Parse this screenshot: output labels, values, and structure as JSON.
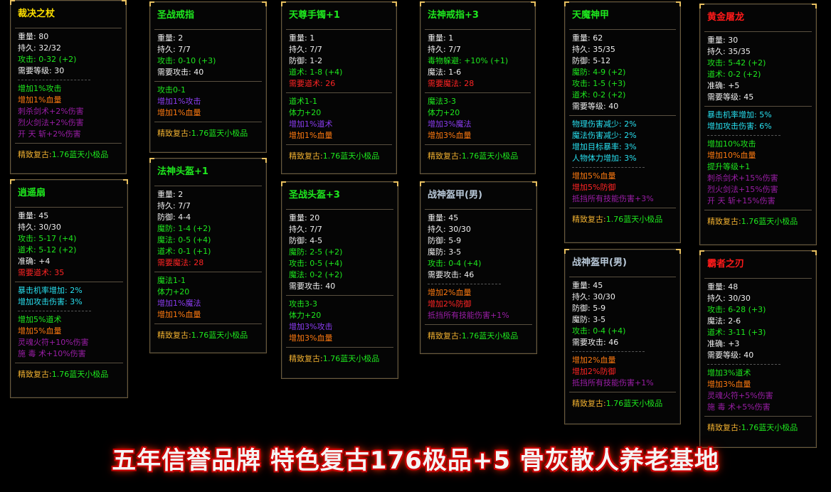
{
  "colors": {
    "w": "#f0f0f0",
    "g": "#1ee81e",
    "r": "#ff2424",
    "o": "#ff7a10",
    "p": "#9a1ea6",
    "v": "#8a3cf0",
    "c": "#28e0f0",
    "y": "#f0b030",
    "gray": "#b8c8d8",
    "border": "#6b5a3a"
  },
  "footer": {
    "label": "精致复古:",
    "value": "1.76蓝天小极品"
  },
  "banner": "五年信誉品牌 特色复古176极品+5 骨灰散人养老基地",
  "cards": [
    {
      "title": "裁决之杖",
      "tc": "#ffe000",
      "sections": [
        {
          "sep": "solid",
          "lines": [
            [
              "重量: 80",
              "w"
            ],
            [
              "持久: 32/32",
              "w"
            ],
            [
              "攻击: 0-32 (+2)",
              "g"
            ],
            [
              "需要等级: 30",
              "w"
            ]
          ]
        },
        {
          "sep": "dashed",
          "lines": [
            [
              "增加1%攻击",
              "g"
            ],
            [
              "增加1%血量",
              "o"
            ],
            [
              "刺杀剑术+2%伤害",
              "p"
            ],
            [
              "烈火剑法+2%伤害",
              "p"
            ],
            [
              "开 天 斩+2%伤害",
              "p"
            ]
          ]
        }
      ]
    },
    {
      "title": "逍遥扇",
      "tc": "#1ee81e",
      "sections": [
        {
          "sep": "solid",
          "lines": [
            [
              "重量: 45",
              "w"
            ],
            [
              "持久: 30/30",
              "w"
            ],
            [
              "攻击: 5-17 (+4)",
              "g"
            ],
            [
              "道术: 5-12 (+2)",
              "g"
            ],
            [
              "准确: +4",
              "w"
            ],
            [
              "需要道术: 35",
              "r"
            ]
          ]
        },
        {
          "sep": "solid",
          "lines": [
            [
              "暴击机率增加: 2%",
              "c"
            ],
            [
              "增加攻击伤害: 3%",
              "c"
            ]
          ]
        },
        {
          "sep": "dashed",
          "lines": [
            [
              "增加5%道术",
              "g"
            ],
            [
              "增加5%血量",
              "o"
            ],
            [
              "灵魂火符+10%伤害",
              "p"
            ],
            [
              "施 毒 术+10%伤害",
              "p"
            ]
          ]
        }
      ]
    },
    {
      "title": "圣战戒指",
      "tc": "#1ee81e",
      "sections": [
        {
          "sep": "solid",
          "lines": [
            [
              "重量: 2",
              "w"
            ],
            [
              "持久: 7/7",
              "w"
            ],
            [
              "攻击: 0-10 (+3)",
              "g"
            ],
            [
              "需要攻击: 40",
              "w"
            ]
          ]
        },
        {
          "sep": "solid",
          "lines": [
            [
              "攻击0-1",
              "g"
            ],
            [
              "增加1%攻击",
              "v"
            ],
            [
              "增加1%血量",
              "o"
            ]
          ]
        }
      ]
    },
    {
      "title": "法神头盔+1",
      "tc": "#1ee81e",
      "sections": [
        {
          "sep": "solid",
          "lines": [
            [
              "重量: 2",
              "w"
            ],
            [
              "持久: 7/7",
              "w"
            ],
            [
              "防御: 4-4",
              "w"
            ],
            [
              "魔防: 1-4 (+2)",
              "g"
            ],
            [
              "魔法: 0-5 (+4)",
              "g"
            ],
            [
              "道术: 0-1 (+1)",
              "g"
            ],
            [
              "需要魔法: 28",
              "r"
            ]
          ]
        },
        {
          "sep": "solid",
          "lines": [
            [
              "魔法1-1",
              "g"
            ],
            [
              "体力+20",
              "g"
            ],
            [
              "增加1%魔法",
              "v"
            ],
            [
              "增加1%血量",
              "o"
            ]
          ]
        }
      ]
    },
    {
      "title": "天尊手镯+1",
      "tc": "#1ee81e",
      "sections": [
        {
          "sep": "solid",
          "lines": [
            [
              "重量: 1",
              "w"
            ],
            [
              "持久: 7/7",
              "w"
            ],
            [
              "防御: 1-2",
              "w"
            ],
            [
              "道术: 1-8 (+4)",
              "g"
            ],
            [
              "需要道术: 26",
              "r"
            ]
          ]
        },
        {
          "sep": "solid",
          "lines": [
            [
              "道术1-1",
              "g"
            ],
            [
              "体力+20",
              "g"
            ],
            [
              "增加1%道术",
              "v"
            ],
            [
              "增加1%血量",
              "o"
            ]
          ]
        }
      ]
    },
    {
      "title": "圣战头盔+3",
      "tc": "#1ee81e",
      "sections": [
        {
          "sep": "solid",
          "lines": [
            [
              "重量: 20",
              "w"
            ],
            [
              "持久: 7/7",
              "w"
            ],
            [
              "防御: 4-5",
              "w"
            ],
            [
              "魔防: 2-5 (+2)",
              "g"
            ],
            [
              "攻击: 0-5 (+4)",
              "g"
            ],
            [
              "魔法: 0-2 (+2)",
              "g"
            ],
            [
              "需要攻击: 40",
              "w"
            ]
          ]
        },
        {
          "sep": "solid",
          "lines": [
            [
              "攻击3-3",
              "g"
            ],
            [
              "体力+20",
              "g"
            ],
            [
              "增加3%攻击",
              "v"
            ],
            [
              "增加3%血量",
              "o"
            ]
          ]
        }
      ]
    },
    {
      "title": "法神戒指+3",
      "tc": "#1ee81e",
      "sections": [
        {
          "sep": "solid",
          "lines": [
            [
              "重量: 1",
              "w"
            ],
            [
              "持久: 7/7",
              "w"
            ],
            [
              "毒物躲避: +10% (+1)",
              "g"
            ],
            [
              "魔法: 1-6",
              "w"
            ],
            [
              "需要魔法: 28",
              "r"
            ]
          ]
        },
        {
          "sep": "solid",
          "lines": [
            [
              "魔法3-3",
              "g"
            ],
            [
              "体力+20",
              "g"
            ],
            [
              "增加3%魔法",
              "v"
            ],
            [
              "增加3%血量",
              "o"
            ]
          ]
        }
      ]
    },
    {
      "title": "战神盔甲(男)",
      "tc": "#b8c8d8",
      "sections": [
        {
          "sep": "solid",
          "lines": [
            [
              "重量: 45",
              "w"
            ],
            [
              "持久: 30/30",
              "w"
            ],
            [
              "防御: 5-9",
              "w"
            ],
            [
              "魔防: 3-5",
              "w"
            ],
            [
              "攻击: 0-4 (+4)",
              "g"
            ],
            [
              "需要攻击: 46",
              "w"
            ]
          ]
        },
        {
          "sep": "dashed",
          "lines": [
            [
              "增加2%血量",
              "o"
            ],
            [
              "增加2%防御",
              "r"
            ],
            [
              "抵挡所有技能伤害+1%",
              "p"
            ]
          ]
        }
      ]
    },
    {
      "title": "天魔神甲",
      "tc": "#1ee81e",
      "sections": [
        {
          "sep": "solid",
          "lines": [
            [
              "重量: 62",
              "w"
            ],
            [
              "持久: 35/35",
              "w"
            ],
            [
              "防御: 5-12",
              "w"
            ],
            [
              "魔防: 4-9 (+2)",
              "g"
            ],
            [
              "攻击: 1-5 (+3)",
              "g"
            ],
            [
              "道术: 0-2 (+2)",
              "g"
            ],
            [
              "需要等级: 40",
              "w"
            ]
          ]
        },
        {
          "sep": "solid",
          "lines": [
            [
              "物理伤害减少: 2%",
              "c"
            ],
            [
              "魔法伤害减少: 2%",
              "c"
            ],
            [
              "增加目标暴率: 3%",
              "c"
            ],
            [
              "人物体力增加: 3%",
              "c"
            ]
          ]
        },
        {
          "sep": "dashed",
          "lines": [
            [
              "增加5%血量",
              "o"
            ],
            [
              "增加5%防御",
              "r"
            ],
            [
              "抵挡所有技能伤害+3%",
              "p"
            ]
          ]
        }
      ]
    },
    {
      "title": "战神盔甲(男)",
      "tc": "#b8c8d8",
      "sections": [
        {
          "sep": "solid",
          "lines": [
            [
              "重量: 45",
              "w"
            ],
            [
              "持久: 30/30",
              "w"
            ],
            [
              "防御: 5-9",
              "w"
            ],
            [
              "魔防: 3-5",
              "w"
            ],
            [
              "攻击: 0-4 (+4)",
              "g"
            ],
            [
              "需要攻击: 46",
              "w"
            ]
          ]
        },
        {
          "sep": "dashed",
          "lines": [
            [
              "增加2%血量",
              "o"
            ],
            [
              "增加2%防御",
              "r"
            ],
            [
              "抵挡所有技能伤害+1%",
              "p"
            ]
          ]
        }
      ]
    },
    {
      "title": "黄金屠龙",
      "tc": "#ff1a1a",
      "sections": [
        {
          "sep": "solid",
          "lines": [
            [
              "重量: 30",
              "w"
            ],
            [
              "持久: 35/35",
              "w"
            ],
            [
              "攻击: 5-42 (+2)",
              "g"
            ],
            [
              "道术: 0-2 (+2)",
              "g"
            ],
            [
              "准确: +5",
              "w"
            ],
            [
              "需要等级: 45",
              "w"
            ]
          ]
        },
        {
          "sep": "solid",
          "lines": [
            [
              "暴击机率增加: 5%",
              "c"
            ],
            [
              "增加攻击伤害: 6%",
              "c"
            ]
          ]
        },
        {
          "sep": "dashed",
          "lines": [
            [
              "增加10%攻击",
              "g"
            ],
            [
              "增加10%血量",
              "o"
            ],
            [
              "提升等级+1",
              "g"
            ],
            [
              "刺杀剑术+15%伤害",
              "p"
            ],
            [
              "烈火剑法+15%伤害",
              "p"
            ],
            [
              "开 天 斩+15%伤害",
              "p"
            ]
          ]
        }
      ]
    },
    {
      "title": "霸者之刃",
      "tc": "#ff1a1a",
      "sections": [
        {
          "sep": "solid",
          "lines": [
            [
              "重量: 48",
              "w"
            ],
            [
              "持久: 30/30",
              "w"
            ],
            [
              "攻击: 6-28 (+3)",
              "g"
            ],
            [
              "魔法: 2-6",
              "w"
            ],
            [
              "道术: 3-11 (+3)",
              "g"
            ],
            [
              "准确: +3",
              "w"
            ],
            [
              "需要等级: 40",
              "w"
            ]
          ]
        },
        {
          "sep": "dashed",
          "lines": [
            [
              "增加3%道术",
              "g"
            ],
            [
              "增加3%血量",
              "o"
            ],
            [
              "灵魂火符+5%伤害",
              "p"
            ],
            [
              "施 毒 术+5%伤害",
              "p"
            ]
          ]
        }
      ]
    }
  ]
}
